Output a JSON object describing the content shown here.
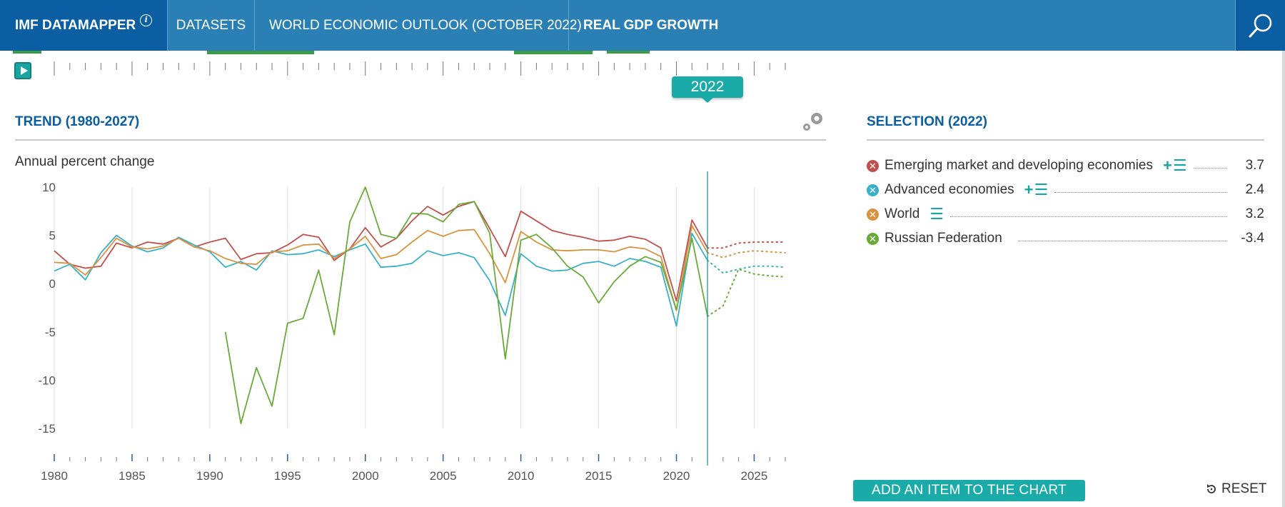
{
  "nav": {
    "brand": "IMF DATAMAPPER",
    "brand_info": "i",
    "datasets": "DATASETS",
    "dataset_name": "WORLD ECONOMIC OUTLOOK (OCTOBER 2022)",
    "indicator": "REAL GDP GROWTH"
  },
  "timeline": {
    "selected_year": "2022"
  },
  "trend": {
    "title": "TREND (1980-2027)",
    "unit": "Annual percent change"
  },
  "selection": {
    "title": "SELECTION (2022)",
    "items": [
      {
        "name": "Emerging market and developing economies",
        "tools": "+☰",
        "value": "3.7",
        "color": "#c0504d"
      },
      {
        "name": "Advanced economies",
        "tools": "+☰",
        "value": "2.4",
        "color": "#3ab0c8"
      },
      {
        "name": "World",
        "tools": "☰",
        "value": "3.2",
        "color": "#d9923f"
      },
      {
        "name": "Russian Federation",
        "tools": "",
        "value": "-3.4",
        "color": "#6aaa3a"
      }
    ],
    "add_label": "ADD AN ITEM TO THE CHART",
    "reset_label": "RESET"
  },
  "chart_data": {
    "type": "line",
    "x": [
      1980,
      1981,
      1982,
      1983,
      1984,
      1985,
      1986,
      1987,
      1988,
      1989,
      1990,
      1991,
      1992,
      1993,
      1994,
      1995,
      1996,
      1997,
      1998,
      1999,
      2000,
      2001,
      2002,
      2003,
      2004,
      2005,
      2006,
      2007,
      2008,
      2009,
      2010,
      2011,
      2012,
      2013,
      2014,
      2015,
      2016,
      2017,
      2018,
      2019,
      2020,
      2021,
      2022,
      2023,
      2024,
      2025,
      2026,
      2027
    ],
    "ylim": [
      -19,
      10
    ],
    "yticks": [
      10,
      5,
      0,
      -5,
      -10,
      -15
    ],
    "xticks": [
      1980,
      1985,
      1990,
      1995,
      2000,
      2005,
      2010,
      2015,
      2020,
      2025
    ],
    "marker_year": 2022,
    "projection_start": 2022,
    "series": [
      {
        "name": "Emerging market and developing economies",
        "color": "#c0504d",
        "values": [
          3.4,
          2.0,
          1.6,
          1.8,
          4.2,
          3.7,
          4.3,
          4.1,
          4.7,
          3.8,
          4.3,
          4.7,
          2.5,
          3.1,
          3.2,
          4.0,
          5.1,
          4.8,
          2.4,
          3.6,
          5.8,
          3.8,
          4.7,
          6.5,
          8.0,
          7.1,
          8.0,
          8.5,
          5.7,
          2.8,
          7.5,
          6.5,
          5.5,
          5.1,
          4.8,
          4.4,
          4.5,
          4.9,
          4.6,
          3.7,
          -1.8,
          6.6,
          3.7,
          3.7,
          4.2,
          4.3,
          4.3,
          4.3
        ]
      },
      {
        "name": "Advanced economies",
        "color": "#3ab0c8",
        "values": [
          1.3,
          2.0,
          0.4,
          3.2,
          5.0,
          3.9,
          3.3,
          3.7,
          4.8,
          4.0,
          3.3,
          1.7,
          2.3,
          1.4,
          3.4,
          3.0,
          3.1,
          3.5,
          2.8,
          3.5,
          4.1,
          1.7,
          1.8,
          2.1,
          3.4,
          2.9,
          3.2,
          2.7,
          0.3,
          -3.3,
          3.1,
          1.8,
          1.3,
          1.4,
          2.1,
          2.3,
          1.8,
          2.6,
          2.3,
          1.7,
          -4.4,
          5.2,
          2.4,
          1.1,
          1.5,
          1.8,
          1.8,
          1.7
        ]
      },
      {
        "name": "World",
        "color": "#d9923f",
        "values": [
          2.2,
          2.1,
          0.9,
          2.7,
          4.7,
          3.8,
          3.6,
          3.9,
          4.7,
          3.8,
          3.4,
          2.6,
          2.1,
          2.0,
          3.3,
          3.4,
          4.0,
          4.1,
          2.6,
          3.6,
          4.9,
          2.6,
          3.0,
          4.3,
          5.5,
          4.9,
          5.5,
          5.6,
          3.1,
          0.1,
          5.4,
          4.3,
          3.5,
          3.4,
          3.5,
          3.5,
          3.3,
          3.8,
          3.6,
          2.8,
          -2.8,
          6.0,
          3.2,
          2.7,
          3.2,
          3.4,
          3.3,
          3.2
        ]
      },
      {
        "name": "Russian Federation",
        "color": "#6aaa3a",
        "values": [
          null,
          null,
          null,
          null,
          null,
          null,
          null,
          null,
          null,
          null,
          null,
          -5.0,
          -14.5,
          -8.7,
          -12.7,
          -4.1,
          -3.6,
          1.4,
          -5.3,
          6.4,
          10.0,
          5.1,
          4.7,
          7.3,
          7.2,
          6.4,
          8.2,
          8.5,
          5.2,
          -7.8,
          4.5,
          5.1,
          3.7,
          1.8,
          0.7,
          -2.0,
          0.2,
          1.8,
          2.8,
          2.2,
          -2.7,
          4.7,
          -3.4,
          -2.3,
          1.5,
          1.0,
          0.8,
          0.7
        ]
      }
    ]
  }
}
